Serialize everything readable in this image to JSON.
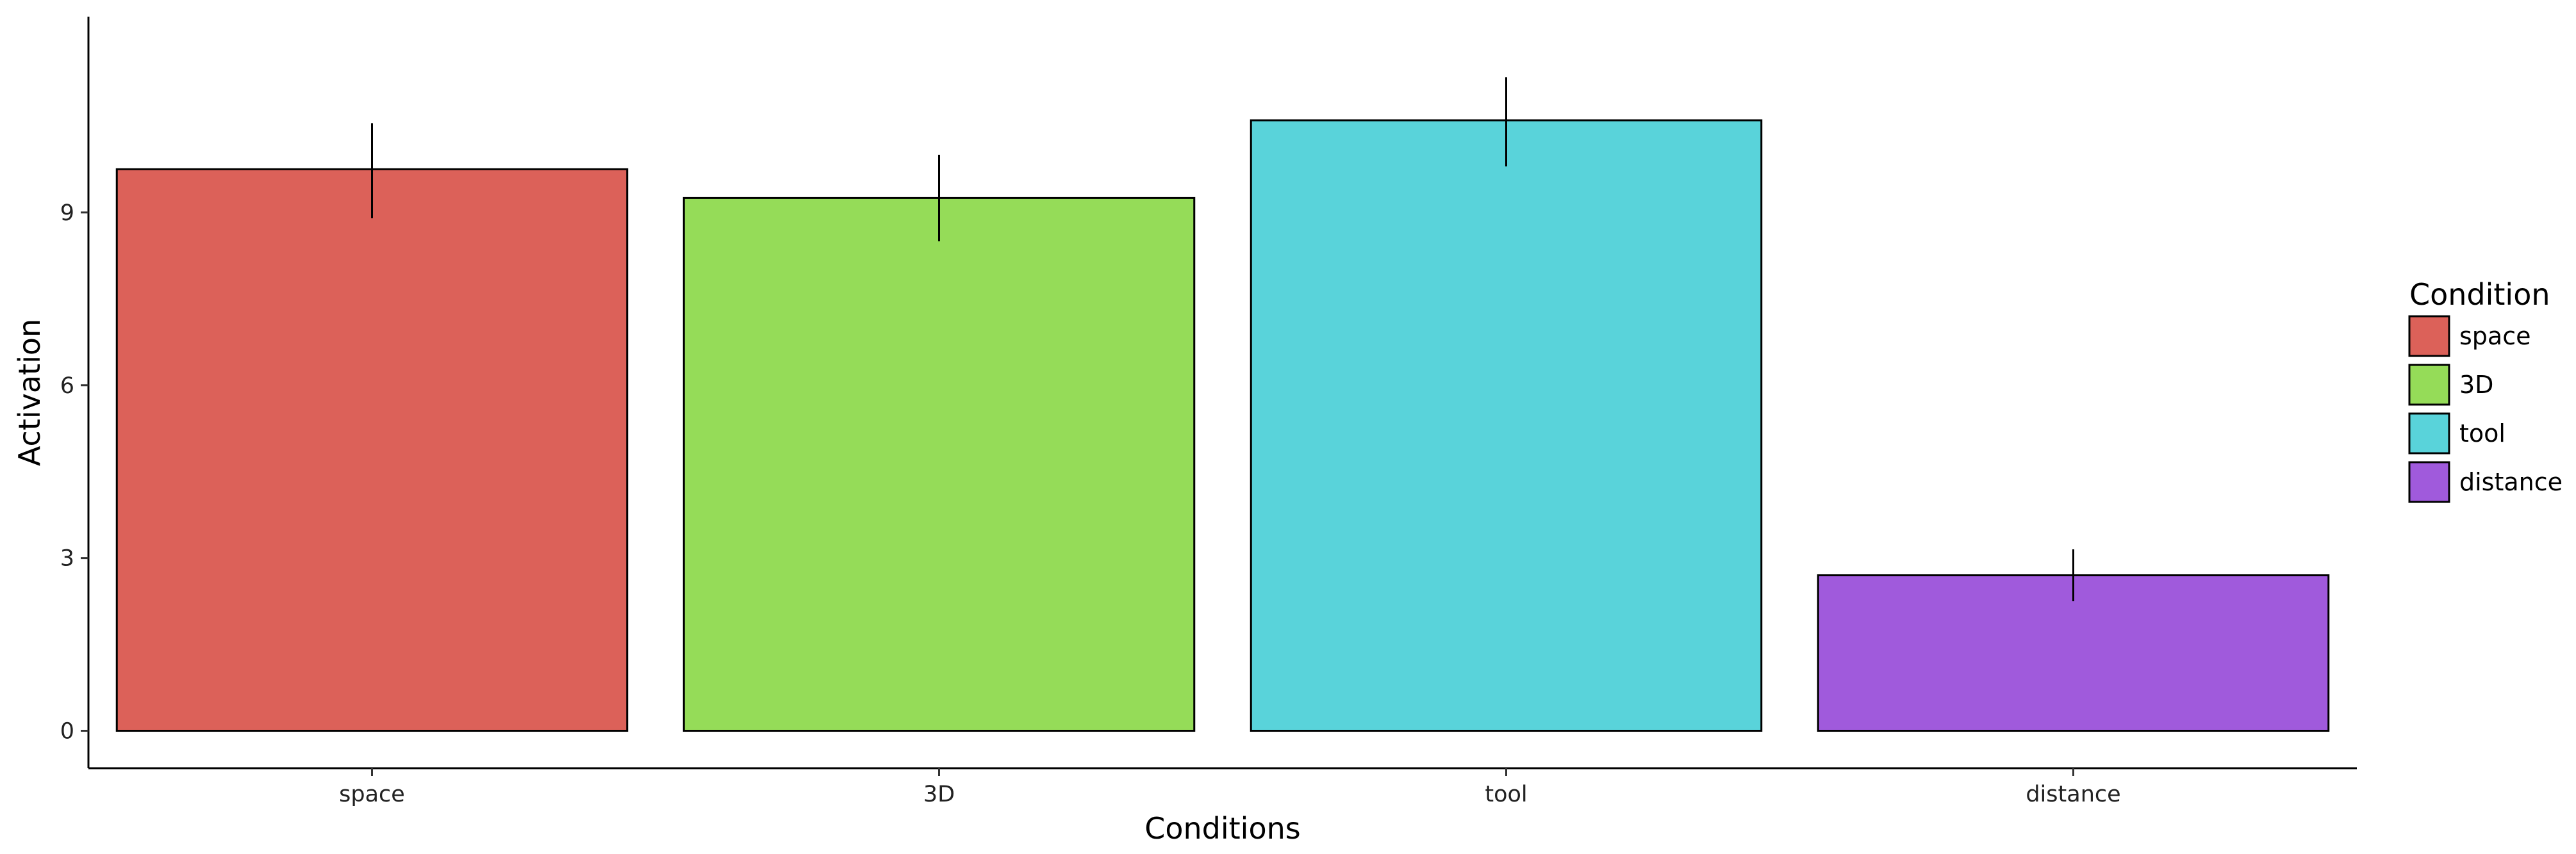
{
  "chart_data": {
    "type": "bar",
    "title": "",
    "xlabel": "Conditions",
    "ylabel": "Activation",
    "categories": [
      "space",
      "3D",
      "tool",
      "distance"
    ],
    "values": [
      9.75,
      9.25,
      10.6,
      2.7
    ],
    "error_low": [
      8.9,
      8.5,
      9.8,
      2.25
    ],
    "error_high": [
      10.55,
      10.0,
      11.35,
      3.15
    ],
    "colors": [
      "#dc6159",
      "#95dc58",
      "#59d3da",
      "#a05adc"
    ],
    "ylim": [
      -0.65,
      12.4
    ],
    "yticks": [
      0,
      3,
      6,
      9
    ],
    "ytick_labels": [
      "0",
      "3",
      "6",
      "9"
    ],
    "grid": false,
    "legend": {
      "title": "Condition",
      "position": "right",
      "entries": [
        "space",
        "3D",
        "tool",
        "distance"
      ]
    }
  }
}
